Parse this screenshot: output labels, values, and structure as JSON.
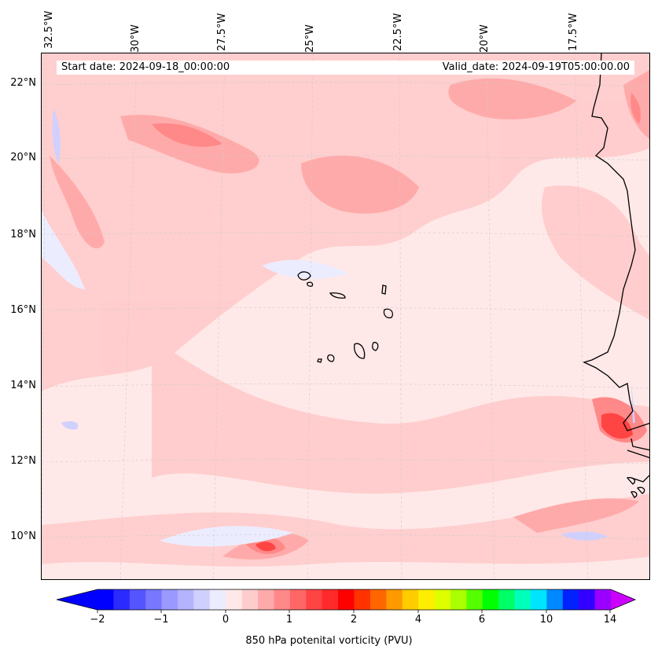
{
  "map": {
    "start_label": "Start date: 2024-09-18_00:00:00",
    "valid_label": "Valid_date: 2024-09-19T05:00:00.00",
    "lon_labels": [
      "32.5°W",
      "30°W",
      "27.5°W",
      "25°W",
      "22.5°W",
      "20°W",
      "17.5°W"
    ],
    "lat_labels": [
      "22°N",
      "20°N",
      "18°N",
      "16°N",
      "14°N",
      "12°N",
      "10°N"
    ],
    "extent": {
      "lon_min": -32.6,
      "lon_max": -16.0,
      "lat_min": 8.9,
      "lat_max": 22.8
    }
  },
  "colorbar": {
    "label": "850 hPa potenital vorticity (PVU)",
    "tick_labels": [
      "−2",
      "−1",
      "0",
      "1",
      "2",
      "4",
      "6",
      "10",
      "14"
    ],
    "tick_values": [
      -2,
      -1,
      0,
      1,
      2,
      4,
      6,
      10,
      14
    ],
    "colors": [
      "#0000ff",
      "#2b2bff",
      "#5555ff",
      "#7777ff",
      "#9999ff",
      "#b3b3ff",
      "#d0d0ff",
      "#ececff",
      "#ffe8e8",
      "#ffcccc",
      "#ffaaaa",
      "#ff8888",
      "#ff6666",
      "#ff4444",
      "#ff2a2a",
      "#ff0000",
      "#ff3300",
      "#ff6600",
      "#ff9900",
      "#ffcc00",
      "#ffee00",
      "#ddff00",
      "#aaff00",
      "#55ff00",
      "#00ff00",
      "#00ff66",
      "#00ffbb",
      "#00e5ff",
      "#0088ff",
      "#0022ff",
      "#3300ff",
      "#9900ff"
    ],
    "under_color": "#0000ff",
    "over_color": "#cc00ff"
  }
}
